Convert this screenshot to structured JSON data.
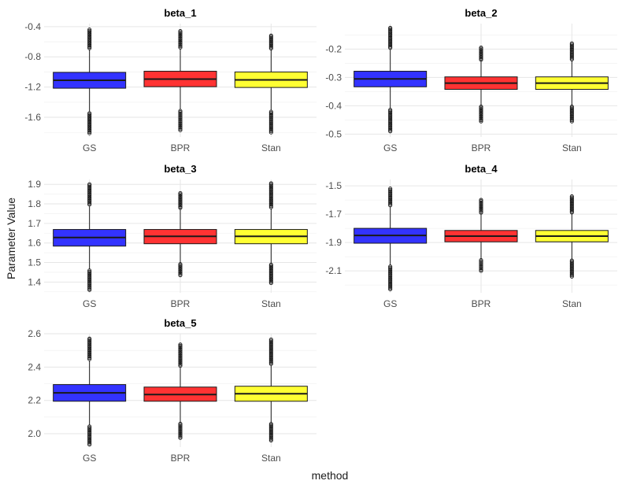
{
  "chart_data": {
    "type": "boxplot",
    "xlabel": "method",
    "ylabel": "Parameter Value",
    "categories": [
      "GS",
      "BPR",
      "Stan"
    ],
    "colors": {
      "GS": "#3333ff",
      "BPR": "#ff3333",
      "Stan": "#ffff33"
    },
    "grid": true,
    "panels": [
      {
        "title": "beta_1",
        "ylim": [
          -1.86,
          -0.36
        ],
        "yticks": [
          -0.4,
          -0.8,
          -1.2,
          -1.6
        ],
        "ytick_labels": [
          "-0.4",
          "-0.8",
          "-1.2",
          "-1.6"
        ],
        "boxes": [
          {
            "method": "GS",
            "whisker_low": -1.53,
            "q1": -1.215,
            "median": -1.11,
            "q3": -1.005,
            "whisker_high": -0.7,
            "out_low": -1.81,
            "out_high": -0.44
          },
          {
            "method": "BPR",
            "whisker_low": -1.5,
            "q1": -1.195,
            "median": -1.095,
            "q3": -0.99,
            "whisker_high": -0.69,
            "out_low": -1.77,
            "out_high": -0.46
          },
          {
            "method": "Stan",
            "whisker_low": -1.51,
            "q1": -1.205,
            "median": -1.105,
            "q3": -1.0,
            "whisker_high": -0.7,
            "out_low": -1.8,
            "out_high": -0.52
          }
        ]
      },
      {
        "title": "beta_2",
        "ylim": [
          -0.51,
          -0.11
        ],
        "yticks": [
          -0.2,
          -0.3,
          -0.4,
          -0.5
        ],
        "ytick_labels": [
          "-0.2",
          "-0.3",
          "-0.4",
          "-0.5"
        ],
        "boxes": [
          {
            "method": "GS",
            "whisker_low": -0.41,
            "q1": -0.333,
            "median": -0.305,
            "q3": -0.278,
            "whisker_high": -0.2,
            "out_low": -0.49,
            "out_high": -0.125
          },
          {
            "method": "BPR",
            "whisker_low": -0.4,
            "q1": -0.342,
            "median": -0.32,
            "q3": -0.298,
            "whisker_high": -0.24,
            "out_low": -0.455,
            "out_high": -0.195
          },
          {
            "method": "Stan",
            "whisker_low": -0.4,
            "q1": -0.342,
            "median": -0.32,
            "q3": -0.298,
            "whisker_high": -0.24,
            "out_low": -0.455,
            "out_high": -0.18
          }
        ]
      },
      {
        "title": "beta_3",
        "ylim": [
          1.345,
          1.925
        ],
        "yticks": [
          1.4,
          1.5,
          1.6,
          1.7,
          1.8,
          1.9
        ],
        "ytick_labels": [
          "1.4",
          "1.5",
          "1.6",
          "1.7",
          "1.8",
          "1.9"
        ],
        "boxes": [
          {
            "method": "GS",
            "whisker_low": 1.465,
            "q1": 1.584,
            "median": 1.628,
            "q3": 1.669,
            "whisker_high": 1.79,
            "out_low": 1.36,
            "out_high": 1.9
          },
          {
            "method": "BPR",
            "whisker_low": 1.495,
            "q1": 1.596,
            "median": 1.634,
            "q3": 1.669,
            "whisker_high": 1.775,
            "out_low": 1.435,
            "out_high": 1.855
          },
          {
            "method": "Stan",
            "whisker_low": 1.495,
            "q1": 1.596,
            "median": 1.634,
            "q3": 1.669,
            "whisker_high": 1.775,
            "out_low": 1.395,
            "out_high": 1.905
          }
        ]
      },
      {
        "title": "beta_4",
        "ylim": [
          -2.255,
          -1.455
        ],
        "yticks": [
          -1.5,
          -1.7,
          -1.9,
          -2.1
        ],
        "ytick_labels": [
          "-1.5",
          "-1.7",
          "-1.9",
          "-2.1"
        ],
        "boxes": [
          {
            "method": "GS",
            "whisker_low": -2.06,
            "q1": -1.905,
            "median": -1.85,
            "q3": -1.8,
            "whisker_high": -1.645,
            "out_low": -2.23,
            "out_high": -1.52
          },
          {
            "method": "BPR",
            "whisker_low": -2.02,
            "q1": -1.895,
            "median": -1.855,
            "q3": -1.815,
            "whisker_high": -1.695,
            "out_low": -2.1,
            "out_high": -1.6
          },
          {
            "method": "Stan",
            "whisker_low": -2.02,
            "q1": -1.895,
            "median": -1.855,
            "q3": -1.815,
            "whisker_high": -1.695,
            "out_low": -2.14,
            "out_high": -1.575
          }
        ]
      },
      {
        "title": "beta_5",
        "ylim": [
          1.92,
          2.6
        ],
        "yticks": [
          2.0,
          2.2,
          2.4,
          2.6
        ],
        "ytick_labels": [
          "2.0",
          "2.2",
          "2.4",
          "2.6"
        ],
        "boxes": [
          {
            "method": "GS",
            "whisker_low": 2.05,
            "q1": 2.195,
            "median": 2.245,
            "q3": 2.295,
            "whisker_high": 2.44,
            "out_low": 1.935,
            "out_high": 2.57
          },
          {
            "method": "BPR",
            "whisker_low": 2.065,
            "q1": 2.195,
            "median": 2.235,
            "q3": 2.28,
            "whisker_high": 2.4,
            "out_low": 1.975,
            "out_high": 2.535
          },
          {
            "method": "Stan",
            "whisker_low": 2.065,
            "q1": 2.195,
            "median": 2.24,
            "q3": 2.285,
            "whisker_high": 2.41,
            "out_low": 1.96,
            "out_high": 2.565
          }
        ]
      }
    ]
  }
}
